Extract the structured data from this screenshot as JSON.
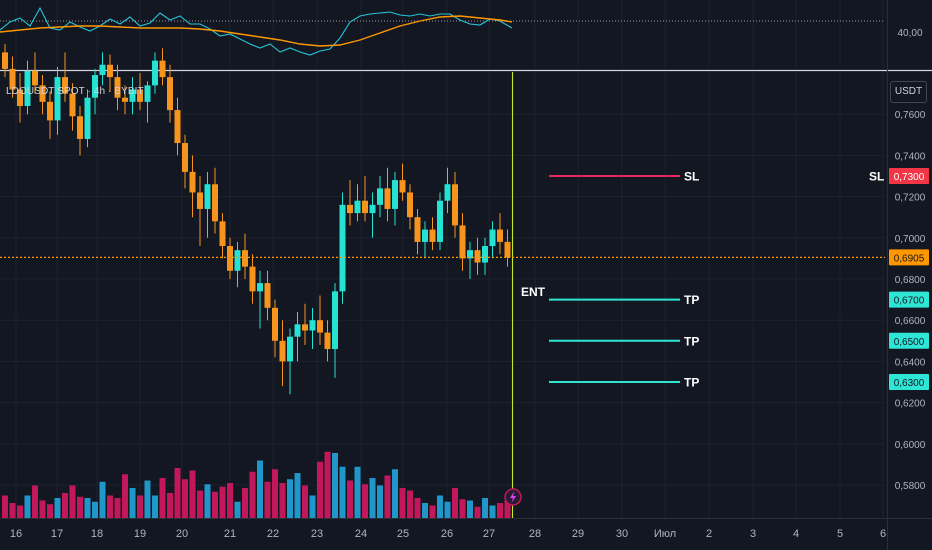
{
  "symbol": {
    "legend": "LDOUSDT SPOT · 4h · BYBIT",
    "currency": "USDT"
  },
  "indicator": {
    "scale_label": "40,00",
    "scale_value": 40,
    "level_value": 50,
    "rsi_line_color": "#26c6da",
    "ma_line_color": "#ff9800"
  },
  "price_axis": {
    "ticks": [
      "0,7600",
      "0,7400",
      "0,7200",
      "0,7000",
      "0,6800",
      "0,6600",
      "0,6400",
      "0,6200",
      "0,6000",
      "0,5800"
    ],
    "tick_values": [
      0.76,
      0.74,
      0.72,
      0.7,
      0.68,
      0.66,
      0.64,
      0.62,
      0.6,
      0.58
    ]
  },
  "time_axis": {
    "labels": [
      "16",
      "17",
      "18",
      "19",
      "20",
      "21",
      "22",
      "23",
      "24",
      "25",
      "26",
      "27",
      "28",
      "29",
      "30",
      "Июл",
      "2",
      "3",
      "4",
      "5",
      "6"
    ]
  },
  "current_price": {
    "value": 0.6905,
    "label": "0,6905",
    "color": "#ff9800"
  },
  "levels": [
    {
      "name": "SL",
      "value": 0.73,
      "label": "0,7300",
      "color": "#f23645",
      "line_color": "#e8285a",
      "axis_text": "SL"
    },
    {
      "name": "TP",
      "value": 0.67,
      "label": "0,6700",
      "color": "#2ee6d6",
      "line_color": "#2ee6d6"
    },
    {
      "name": "TP",
      "value": 0.65,
      "label": "0,6500",
      "color": "#2ee6d6",
      "line_color": "#2ee6d6"
    },
    {
      "name": "TP",
      "value": 0.63,
      "label": "0,6300",
      "color": "#2ee6d6",
      "line_color": "#2ee6d6"
    }
  ],
  "entry": {
    "label": "ENT",
    "marker_color": "#c6e92b"
  },
  "colors": {
    "up": "#26e2d2",
    "down": "#f7941d",
    "volume_up": "#2196c8",
    "volume_down": "#c2185b",
    "background": "#131722",
    "grid": "#1e222d",
    "axis_text": "#b2b5be"
  },
  "chart_data": {
    "type": "candlestick",
    "timeframe": "4h",
    "ylim": [
      0.572,
      0.79
    ],
    "candles": [
      [
        0.79,
        0.794,
        0.778,
        0.782
      ],
      [
        0.782,
        0.788,
        0.768,
        0.772
      ],
      [
        0.772,
        0.78,
        0.756,
        0.764
      ],
      [
        0.764,
        0.786,
        0.76,
        0.781
      ],
      [
        0.781,
        0.79,
        0.77,
        0.774
      ],
      [
        0.774,
        0.779,
        0.76,
        0.766
      ],
      [
        0.766,
        0.771,
        0.748,
        0.757
      ],
      [
        0.757,
        0.783,
        0.75,
        0.778
      ],
      [
        0.778,
        0.79,
        0.766,
        0.77
      ],
      [
        0.77,
        0.775,
        0.752,
        0.759
      ],
      [
        0.759,
        0.764,
        0.74,
        0.748
      ],
      [
        0.748,
        0.772,
        0.744,
        0.768
      ],
      [
        0.768,
        0.782,
        0.76,
        0.779
      ],
      [
        0.779,
        0.79,
        0.774,
        0.784
      ],
      [
        0.784,
        0.789,
        0.771,
        0.778
      ],
      [
        0.778,
        0.784,
        0.762,
        0.768
      ],
      [
        0.768,
        0.774,
        0.76,
        0.766
      ],
      [
        0.766,
        0.778,
        0.76,
        0.772
      ],
      [
        0.772,
        0.78,
        0.762,
        0.766
      ],
      [
        0.766,
        0.776,
        0.756,
        0.774
      ],
      [
        0.774,
        0.79,
        0.77,
        0.786
      ],
      [
        0.786,
        0.792,
        0.774,
        0.778
      ],
      [
        0.778,
        0.784,
        0.756,
        0.762
      ],
      [
        0.762,
        0.768,
        0.74,
        0.746
      ],
      [
        0.746,
        0.75,
        0.724,
        0.732
      ],
      [
        0.732,
        0.74,
        0.71,
        0.722
      ],
      [
        0.722,
        0.73,
        0.696,
        0.714
      ],
      [
        0.714,
        0.732,
        0.7,
        0.726
      ],
      [
        0.726,
        0.734,
        0.702,
        0.708
      ],
      [
        0.708,
        0.712,
        0.69,
        0.696
      ],
      [
        0.696,
        0.7,
        0.68,
        0.684
      ],
      [
        0.684,
        0.698,
        0.676,
        0.694
      ],
      [
        0.694,
        0.702,
        0.68,
        0.686
      ],
      [
        0.686,
        0.692,
        0.668,
        0.674
      ],
      [
        0.674,
        0.684,
        0.656,
        0.678
      ],
      [
        0.678,
        0.684,
        0.66,
        0.666
      ],
      [
        0.666,
        0.67,
        0.642,
        0.65
      ],
      [
        0.65,
        0.66,
        0.628,
        0.64
      ],
      [
        0.64,
        0.656,
        0.624,
        0.652
      ],
      [
        0.652,
        0.664,
        0.64,
        0.658
      ],
      [
        0.658,
        0.668,
        0.648,
        0.655
      ],
      [
        0.655,
        0.666,
        0.646,
        0.66
      ],
      [
        0.66,
        0.672,
        0.648,
        0.654
      ],
      [
        0.654,
        0.66,
        0.64,
        0.646
      ],
      [
        0.646,
        0.678,
        0.632,
        0.674
      ],
      [
        0.674,
        0.722,
        0.668,
        0.716
      ],
      [
        0.716,
        0.728,
        0.706,
        0.712
      ],
      [
        0.712,
        0.726,
        0.708,
        0.718
      ],
      [
        0.718,
        0.73,
        0.708,
        0.712
      ],
      [
        0.712,
        0.722,
        0.7,
        0.716
      ],
      [
        0.716,
        0.73,
        0.71,
        0.724
      ],
      [
        0.724,
        0.734,
        0.708,
        0.714
      ],
      [
        0.714,
        0.732,
        0.706,
        0.728
      ],
      [
        0.728,
        0.736,
        0.718,
        0.722
      ],
      [
        0.722,
        0.726,
        0.704,
        0.71
      ],
      [
        0.71,
        0.714,
        0.692,
        0.698
      ],
      [
        0.698,
        0.708,
        0.69,
        0.704
      ],
      [
        0.704,
        0.71,
        0.694,
        0.698
      ],
      [
        0.698,
        0.722,
        0.694,
        0.718
      ],
      [
        0.718,
        0.734,
        0.712,
        0.726
      ],
      [
        0.726,
        0.732,
        0.7,
        0.706
      ],
      [
        0.706,
        0.712,
        0.684,
        0.69
      ],
      [
        0.69,
        0.698,
        0.68,
        0.694
      ],
      [
        0.694,
        0.7,
        0.682,
        0.688
      ],
      [
        0.688,
        0.7,
        0.682,
        0.696
      ],
      [
        0.696,
        0.708,
        0.69,
        0.704
      ],
      [
        0.704,
        0.712,
        0.692,
        0.698
      ],
      [
        0.698,
        0.704,
        0.686,
        0.6905
      ]
    ],
    "volume_relative": [
      0.18,
      0.12,
      0.1,
      0.18,
      0.26,
      0.14,
      0.11,
      0.16,
      0.2,
      0.26,
      0.17,
      0.16,
      0.13,
      0.29,
      0.18,
      0.16,
      0.35,
      0.24,
      0.18,
      0.3,
      0.18,
      0.32,
      0.2,
      0.4,
      0.31,
      0.38,
      0.22,
      0.27,
      0.21,
      0.25,
      0.28,
      0.13,
      0.24,
      0.37,
      0.46,
      0.29,
      0.39,
      0.28,
      0.31,
      0.36,
      0.26,
      0.18,
      0.45,
      0.53,
      0.52,
      0.41,
      0.3,
      0.41,
      0.27,
      0.32,
      0.26,
      0.34,
      0.39,
      0.24,
      0.22,
      0.16,
      0.12,
      0.1,
      0.18,
      0.13,
      0.24,
      0.15,
      0.14,
      0.09,
      0.16,
      0.1,
      0.12,
      0.14
    ]
  }
}
